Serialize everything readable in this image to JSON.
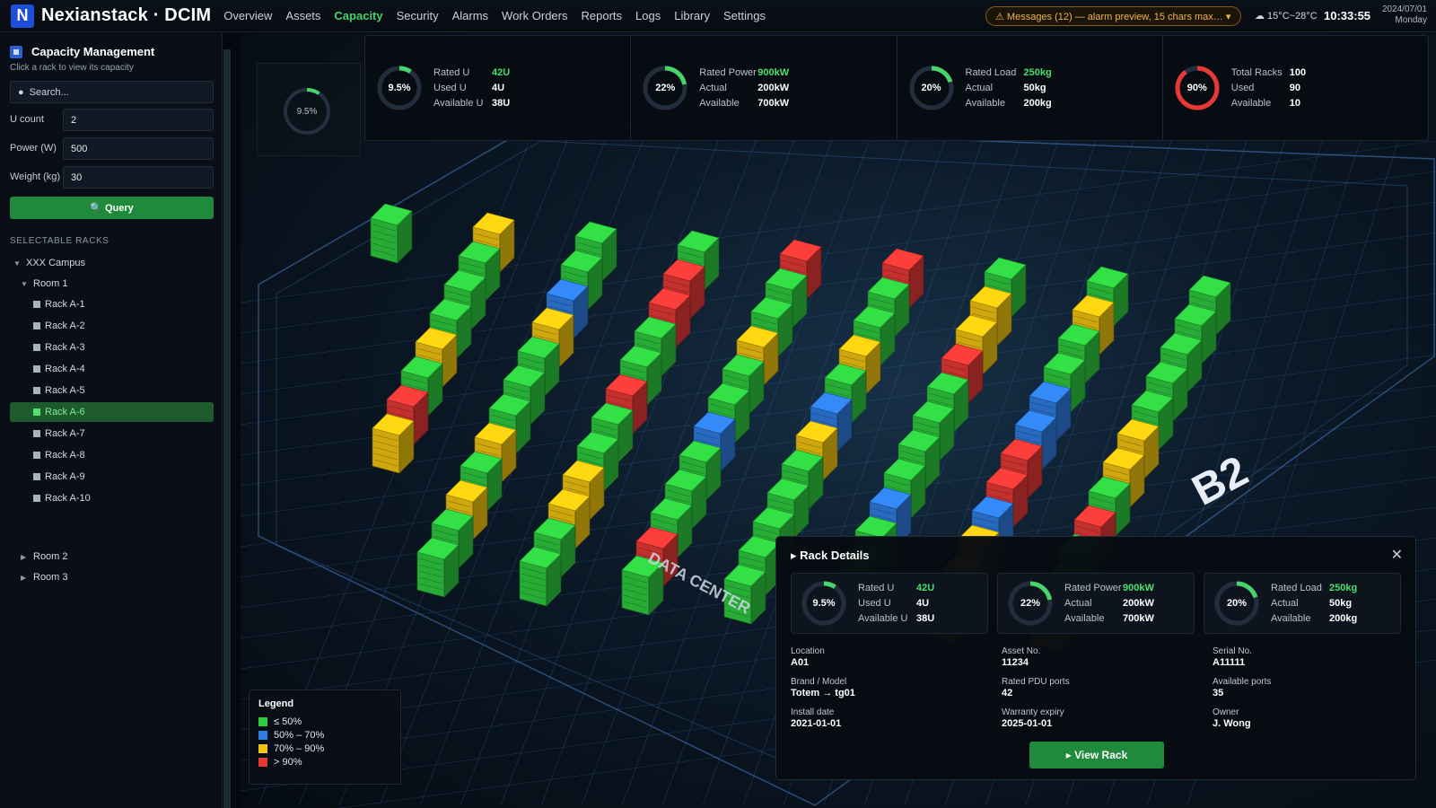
{
  "header": {
    "logo_letter": "N",
    "title": "Nexianstack · DCIM",
    "nav": [
      "Overview",
      "Assets",
      "Capacity",
      "Security",
      "Alarms",
      "Work Orders",
      "Reports",
      "Logs",
      "Library",
      "Settings"
    ],
    "active_nav": "Capacity",
    "messages": "⚠ Messages (12) — alarm preview, 15 chars max… ▾",
    "weather": "☁ 15°C~28°C",
    "time": "10:33:55",
    "date": "2024/07/01",
    "weekday": "Monday"
  },
  "sidebar": {
    "title": "Capacity Management",
    "subtitle": "Click a rack to view its capacity",
    "search_placeholder": "Search...",
    "fields": [
      {
        "label": "U count",
        "value": "2"
      },
      {
        "label": "Power (W)",
        "value": "500"
      },
      {
        "label": "Weight (kg)",
        "value": "30"
      }
    ],
    "query_label": "🔍 Query",
    "section": "SELECTABLE RACKS",
    "campus": "XXX Campus",
    "room1": "Room 1",
    "racks": [
      "Rack A-1",
      "Rack A-2",
      "Rack A-3",
      "Rack A-4",
      "Rack A-5",
      "Rack A-6",
      "Rack A-7",
      "Rack A-8",
      "Rack A-9",
      "Rack A-10"
    ],
    "selected_rack": "Rack A-6",
    "room2": "Room 2",
    "room3": "Room 3"
  },
  "kpis": [
    {
      "ring": "9.5%",
      "pct": 9.5,
      "color": "#46d46b",
      "rows": [
        [
          "Rated U",
          "42U"
        ],
        [
          "Used U",
          "4U"
        ],
        [
          "Available U",
          "38U"
        ]
      ]
    },
    {
      "ring": "22%",
      "pct": 22,
      "color": "#46d46b",
      "rows": [
        [
          "Rated Power",
          "900kW"
        ],
        [
          "Actual",
          "200kW"
        ],
        [
          "Available",
          "700kW"
        ]
      ]
    },
    {
      "ring": "20%",
      "pct": 20,
      "color": "#46d46b",
      "rows": [
        [
          "Rated Load",
          "250kg"
        ],
        [
          "Actual",
          "50kg"
        ],
        [
          "Available",
          "200kg"
        ]
      ]
    },
    {
      "ring": "90%",
      "pct": 90,
      "color": "#e53935",
      "rows": [
        [
          "Total Racks",
          "100"
        ],
        [
          "Used",
          "90"
        ],
        [
          "Available",
          "10"
        ]
      ]
    }
  ],
  "mini_ring": "9.5%",
  "scene": {
    "floor_label": "B2",
    "logo_text": "DATA CENTER"
  },
  "legend": {
    "title": "Legend",
    "items": [
      {
        "label": "≤ 50%",
        "color": "#2ecc40"
      },
      {
        "label": "50% – 70%",
        "color": "#2f7de1"
      },
      {
        "label": "70% – 90%",
        "color": "#f1c40f"
      },
      {
        "label": "> 90%",
        "color": "#e53935"
      }
    ]
  },
  "details": {
    "title": "▸ Rack Details",
    "kpis": [
      {
        "ring": "9.5%",
        "pct": 9.5,
        "rows": [
          [
            "Rated U",
            "42U"
          ],
          [
            "Used U",
            "4U"
          ],
          [
            "Available U",
            "38U"
          ]
        ]
      },
      {
        "ring": "22%",
        "pct": 22,
        "rows": [
          [
            "Rated Power",
            "900kW"
          ],
          [
            "Actual",
            "200kW"
          ],
          [
            "Available",
            "700kW"
          ]
        ]
      },
      {
        "ring": "20%",
        "pct": 20,
        "rows": [
          [
            "Rated Load",
            "250kg"
          ],
          [
            "Actual",
            "50kg"
          ],
          [
            "Available",
            "200kg"
          ]
        ]
      }
    ],
    "info": [
      {
        "label": "Location",
        "value": "A01"
      },
      {
        "label": "Asset No.",
        "value": "11234"
      },
      {
        "label": "Serial No.",
        "value": "A11111"
      },
      {
        "label": "Brand / Model",
        "value": "Totem → tg01"
      },
      {
        "label": "Rated PDU ports",
        "value": "42"
      },
      {
        "label": "Available ports",
        "value": "35"
      },
      {
        "label": "Install date",
        "value": "2021-01-01"
      },
      {
        "label": "Warranty expiry",
        "value": "2025-01-01"
      },
      {
        "label": "Owner",
        "value": "J. Wong"
      }
    ],
    "view_label": "▸ View Rack"
  }
}
